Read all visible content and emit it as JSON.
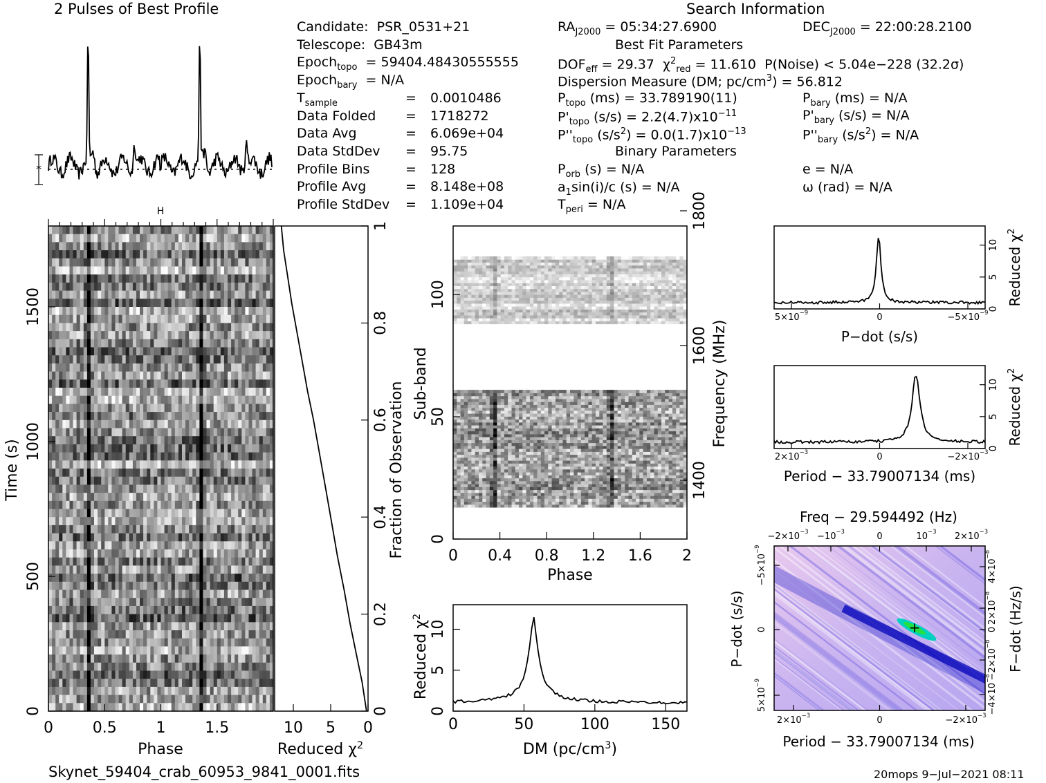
{
  "header": {
    "profile_title": "2 Pulses of Best Profile",
    "search_title": "Search Information",
    "best_fit_title": "Best Fit Parameters",
    "binary_title": "Binary Parameters"
  },
  "info_left": [
    {
      "k": "Candidate:",
      "v": "PSR_0531+21"
    },
    {
      "k": "Telescope:",
      "v": "GB43m"
    },
    {
      "k": "Epoch",
      "sub": "topo",
      "v": "= 59404.48430555555"
    },
    {
      "k": "Epoch",
      "sub": "bary",
      "v": "= N/A"
    },
    {
      "k": "T",
      "sub": "sample",
      "v": "0.0010486"
    },
    {
      "k": "Data Folded",
      "v": "1718272"
    },
    {
      "k": "Data Avg",
      "v": "6.069e+04"
    },
    {
      "k": "Data StdDev",
      "v": "95.75"
    },
    {
      "k": "Profile Bins",
      "v": "128"
    },
    {
      "k": "Profile Avg",
      "v": "8.148e+08"
    },
    {
      "k": "Profile StdDev",
      "v": "1.109e+04"
    }
  ],
  "info_mid": {
    "ra_label": "RA",
    "ra_sub": "J2000",
    "ra_value": "= 05:34:27.6900",
    "dec_label": "DEC",
    "dec_sub": "J2000",
    "dec_value": "= 22:00:28.2100",
    "dof": "DOF",
    "dof_sub": "eff",
    "dof_value": "= 29.37",
    "chi_label": "χ",
    "chi_sub": "red",
    "chi_value": "= 11.610",
    "pnoise": "P(Noise) < 5.04e−228   (32.2σ)",
    "dm_line": "Dispersion Measure (DM; pc/cm",
    "dm_value": ") = 56.812",
    "ptopo": "(ms) =  33.789190(11)",
    "pdtopo": "(s/s) =   2.2(4.7)x10",
    "pdtopo_exp": "−11",
    "pddtopo": "(s/s",
    "pddtopo_value": ") = 0.0(1.7)x10",
    "pddtopo_exp": "−13",
    "pbary": "(ms) = N/A",
    "pdbary": "(s/s) = N/A",
    "pddbary": "(s/s",
    "pddbary_value": ") = N/A",
    "porb": "(s) = N/A",
    "a1": "a",
    "a1_rest": "sin(i)/c (s) = N/A",
    "tperi": "= N/A",
    "e": "e = N/A",
    "omega": "ω (rad) = N/A"
  },
  "footer": {
    "filename": "Skynet_59404_crab_60953_9841_0001.fits",
    "stamp": "20mops   9−Jul−2021 08:11"
  },
  "chart_data": [
    {
      "type": "line",
      "name": "profile",
      "title": "2 Pulses of Best Profile",
      "x": [
        0,
        0.05,
        0.1,
        0.15,
        0.2,
        0.25,
        0.3,
        0.33,
        0.35,
        0.37,
        0.4,
        0.45,
        0.5,
        0.55,
        0.6,
        0.65,
        0.7,
        0.75,
        0.8,
        0.85,
        0.9,
        0.95,
        1.0,
        1.05,
        1.1,
        1.15,
        1.2,
        1.25,
        1.3,
        1.33,
        1.35,
        1.37,
        1.4,
        1.45,
        1.5,
        1.55,
        1.6,
        1.65,
        1.7,
        1.75,
        1.8,
        1.85,
        1.9,
        1.95,
        2.0
      ],
      "values": [
        0.12,
        0.16,
        0.14,
        0.22,
        0.18,
        0.25,
        0.3,
        0.6,
        1.0,
        0.6,
        0.25,
        0.1,
        0.2,
        0.15,
        0.08,
        0.2,
        0.34,
        0.18,
        0.12,
        0.2,
        0.14,
        0.22,
        0.12,
        0.16,
        0.14,
        0.22,
        0.18,
        0.25,
        0.3,
        0.6,
        1.0,
        0.6,
        0.25,
        0.1,
        0.2,
        0.15,
        0.08,
        0.2,
        0.34,
        0.18,
        0.12,
        0.2,
        0.14,
        0.22,
        0.12
      ]
    },
    {
      "type": "heatmap",
      "name": "time-phase",
      "xlabel": "Phase",
      "ylabel": "Time (s)",
      "xticks": [
        "0",
        "0.5",
        "1",
        "1.5"
      ],
      "yticks": [
        "0",
        "500",
        "1000",
        "1500"
      ],
      "xlim": [
        0,
        2
      ],
      "ylim": [
        0,
        1800
      ]
    },
    {
      "type": "line",
      "name": "time-chi2",
      "xlabel": "Reduced χ",
      "xlabel_exp": "2",
      "ylabel_right": "Fraction of Observation",
      "xticks": [
        "10",
        "5",
        "0"
      ],
      "yticks_right": [
        "0",
        "0.2",
        "0.4",
        "0.6",
        "0.8",
        "1"
      ],
      "xlim": [
        12.5,
        0
      ],
      "ylim": [
        0,
        1
      ],
      "x": [
        0.2,
        0.8,
        1.6,
        2.4,
        3.2,
        4.1,
        5.0,
        5.8,
        6.6,
        7.3,
        8.1,
        8.8,
        9.5,
        10.2,
        10.8,
        11.3,
        11.6
      ],
      "y": [
        0.0,
        0.06,
        0.12,
        0.18,
        0.25,
        0.32,
        0.4,
        0.47,
        0.54,
        0.6,
        0.66,
        0.72,
        0.78,
        0.84,
        0.9,
        0.95,
        1.0
      ]
    },
    {
      "type": "heatmap",
      "name": "subband-phase",
      "xlabel": "Phase",
      "ylabel": "Sub-band",
      "ylabel_right": "Frequency (MHz)",
      "xticks": [
        "0",
        "0.4",
        "0.8",
        "1.2",
        "1.6",
        "2"
      ],
      "yticks": [
        "0",
        "50",
        "100"
      ],
      "yticks_right": [
        "1400",
        "1600",
        "1800"
      ],
      "xlim": [
        0,
        2
      ],
      "ylim": [
        0,
        128
      ]
    },
    {
      "type": "line",
      "name": "dm-chi2",
      "xlabel": "DM (pc/cm",
      "xlabel_exp": "3",
      "xlabel_end": ")",
      "ylabel": "Reduced χ",
      "ylabel_exp": "2",
      "xticks": [
        "0",
        "50",
        "100",
        "150"
      ],
      "yticks": [
        "0",
        "5",
        "10"
      ],
      "xlim": [
        0,
        165
      ],
      "ylim": [
        0,
        13
      ],
      "x": [
        0,
        10,
        20,
        30,
        40,
        45,
        50,
        53,
        55,
        56.8,
        58,
        60,
        63,
        66,
        70,
        80,
        90,
        100,
        120,
        140,
        165
      ],
      "y": [
        1.0,
        1.1,
        1.2,
        1.5,
        2.2,
        3.0,
        4.5,
        6.5,
        9.0,
        11.4,
        9.5,
        6.5,
        4.0,
        2.8,
        2.2,
        1.6,
        1.3,
        1.2,
        1.1,
        1.0,
        1.0
      ]
    },
    {
      "type": "line",
      "name": "pdot-chi2",
      "xlabel": "P−dot (s/s)",
      "ylabel_right": "Reduced χ",
      "ylabel_right_exp": "2",
      "xticks": [
        "5×10",
        "0",
        "−5×10"
      ],
      "xticks_exp": [
        "−9",
        "",
        "−9"
      ],
      "yticks_right": [
        "0",
        "5",
        "10"
      ],
      "xlim": [
        5e-09,
        -5.5e-09
      ],
      "ylim": [
        0,
        13
      ],
      "x": [
        5e-09,
        3e-09,
        1.5e-09,
        8e-10,
        4e-10,
        1e-10,
        0,
        -1e-10,
        -4e-10,
        -8e-10,
        -1.5e-09,
        -3e-09,
        -5.5e-09
      ],
      "y": [
        0.8,
        0.9,
        1.1,
        1.6,
        3.0,
        8.0,
        11.5,
        8.0,
        3.0,
        1.8,
        1.2,
        1.0,
        0.9
      ]
    },
    {
      "type": "line",
      "name": "period-chi2",
      "xlabel": "Period − 33.79007134 (ms)",
      "ylabel_right": "Reduced χ",
      "ylabel_right_exp": "2",
      "xticks": [
        "2×10",
        "0",
        "−2×10"
      ],
      "xticks_exp": [
        "−3",
        "",
        "−3"
      ],
      "yticks_right": [
        "0",
        "5",
        "10"
      ],
      "xlim": [
        0.0025,
        -0.0025
      ],
      "ylim": [
        0,
        13
      ],
      "x": [
        0.0025,
        0.0015,
        0.0005,
        0.0,
        -0.0004,
        -0.0006,
        -0.0007,
        -0.00075,
        -0.0008,
        -0.0009,
        -0.0011,
        -0.0015,
        -0.0025
      ],
      "y": [
        1.0,
        1.0,
        1.1,
        1.3,
        2.0,
        4.5,
        8.0,
        11.4,
        8.5,
        4.0,
        1.6,
        1.1,
        1.0
      ]
    },
    {
      "type": "heatmap",
      "name": "period-pdot",
      "title": "Freq − 29.594492 (Hz)",
      "xlabel": "Period − 33.79007134 (ms)",
      "ylabel": "P−dot (s/s)",
      "ylabel_right": "F−dot (Hz/s)",
      "xticks_top": [
        "−2×10",
        "−10",
        "0",
        "10",
        "2×10"
      ],
      "xticks_top_exp": [
        "−3",
        "−3",
        "",
        "−3",
        "−3"
      ],
      "xticks": [
        "2×10",
        "0",
        "−2×10"
      ],
      "xticks_exp": [
        "−3",
        "",
        "−3"
      ],
      "yticks": [
        "−5×10",
        "0",
        "5×10"
      ],
      "yticks_exp": [
        "−9",
        "",
        "−9"
      ],
      "yticks_right": [
        "4×10",
        "2×10",
        "0",
        "−2×10",
        "−4×10"
      ],
      "yticks_right_exp": [
        "−8",
        "−8",
        "",
        "−8",
        "−8"
      ]
    }
  ]
}
